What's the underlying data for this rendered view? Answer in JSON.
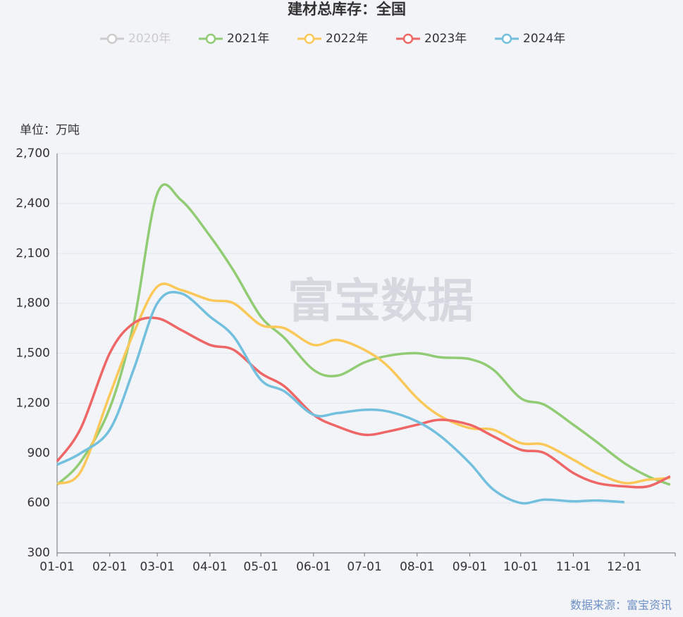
{
  "chart_data": {
    "type": "line",
    "title": "建材总库存：全国",
    "unit_label": "单位：万吨",
    "source": "数据来源：富宝资讯",
    "watermark": "富宝数据",
    "x": [
      "01-01",
      "01-15",
      "02-01",
      "02-15",
      "03-01",
      "03-15",
      "04-01",
      "04-15",
      "05-01",
      "05-15",
      "06-01",
      "06-15",
      "07-01",
      "07-15",
      "08-01",
      "08-15",
      "09-01",
      "09-15",
      "10-01",
      "10-15",
      "11-01",
      "11-15",
      "12-01",
      "12-15",
      "12-28"
    ],
    "xlim": [
      "01-01",
      "12-31"
    ],
    "xticks": [
      "01-01",
      "02-01",
      "03-01",
      "04-01",
      "05-01",
      "06-01",
      "07-01",
      "08-01",
      "09-01",
      "10-01",
      "11-01",
      "12-01"
    ],
    "ylim": [
      300,
      2700
    ],
    "yticks": [
      300,
      600,
      900,
      {
        "value": 1200,
        "label": "1,200"
      },
      {
        "value": 1500,
        "label": "1,500"
      },
      {
        "value": 1800,
        "label": "1,800"
      },
      {
        "value": 2100,
        "label": "2,100"
      },
      {
        "value": 2400,
        "label": "2,400"
      },
      {
        "value": 2700,
        "label": "2,700"
      }
    ],
    "grid": true,
    "legend": "top",
    "series": [
      {
        "name": "2020年",
        "color": "#cccccc",
        "hidden": true,
        "values": [
          null,
          null,
          null,
          null,
          null,
          null,
          null,
          null,
          null,
          null,
          null,
          null,
          null,
          null,
          null,
          null,
          null,
          null,
          null,
          null,
          null,
          null,
          null,
          null,
          null
        ]
      },
      {
        "name": "2021年",
        "color": "#91cc75",
        "values": [
          710,
          850,
          1170,
          1675,
          2460,
          2420,
          2205,
          1995,
          1720,
          1590,
          1400,
          1365,
          1445,
          1485,
          1500,
          1475,
          1465,
          1400,
          1230,
          1190,
          1070,
          965,
          840,
          760,
          710
        ]
      },
      {
        "name": "2022年",
        "color": "#fac858",
        "values": [
          715,
          790,
          1250,
          1620,
          1900,
          1880,
          1820,
          1800,
          1670,
          1650,
          1550,
          1580,
          1520,
          1420,
          1230,
          1120,
          1050,
          1040,
          960,
          950,
          860,
          780,
          720,
          740,
          750
        ]
      },
      {
        "name": "2023年",
        "color": "#ee6666",
        "values": [
          850,
          1050,
          1500,
          1680,
          1710,
          1640,
          1550,
          1520,
          1380,
          1300,
          1130,
          1060,
          1010,
          1030,
          1070,
          1100,
          1070,
          1000,
          920,
          900,
          780,
          720,
          700,
          700,
          760
        ]
      },
      {
        "name": "2024年",
        "color": "#73c0de",
        "values": [
          830,
          900,
          1040,
          1400,
          1800,
          1860,
          1720,
          1600,
          1340,
          1270,
          1130,
          1140,
          1160,
          1150,
          1090,
          1000,
          840,
          680,
          600,
          620,
          610,
          615,
          605,
          null,
          null
        ]
      }
    ]
  }
}
